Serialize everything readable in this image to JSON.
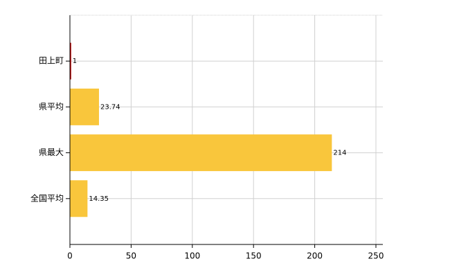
{
  "chart_data": {
    "type": "hbar",
    "categories": [
      "田上町",
      "県平均",
      "県最大",
      "全国平均"
    ],
    "values": [
      1,
      23.74,
      214,
      14.35
    ],
    "colors": [
      "#c00000",
      "#f9c63c",
      "#f9c63c",
      "#f9c63c"
    ],
    "xlim": [
      0,
      250
    ],
    "xticks": [
      0,
      50,
      100,
      150,
      200,
      250
    ],
    "grid": true
  }
}
